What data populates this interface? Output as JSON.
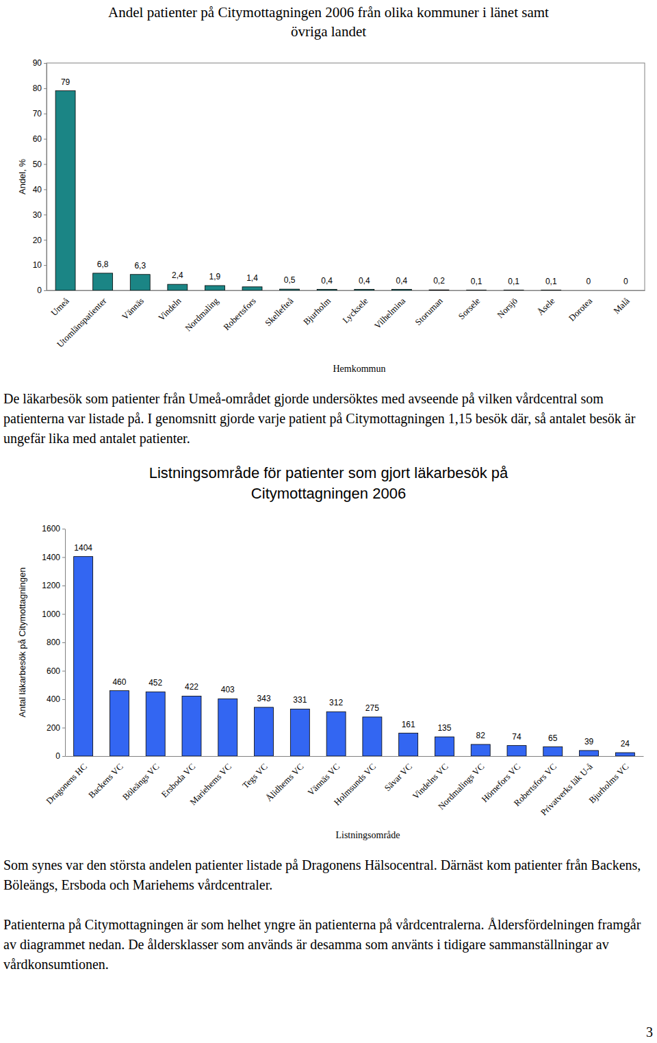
{
  "chart_data": [
    {
      "type": "bar",
      "title": "Andel patienter på Citymottagningen 2006 från olika kommuner i länet samt övriga landet",
      "x_label": "Hemkommun",
      "y_label": "Andel, %",
      "categories": [
        "Umeå",
        "Utomlänspatienter",
        "Vännäs",
        "Vindeln",
        "Nordmaling",
        "Robertsfors",
        "Skellefteå",
        "Bjurholm",
        "Lycksele",
        "Vilhelmina",
        "Storuman",
        "Sorsele",
        "Norsjö",
        "Åsele",
        "Dorotea",
        "Malå"
      ],
      "values": [
        79,
        6.8,
        6.3,
        2.4,
        1.9,
        1.4,
        0.5,
        0.4,
        0.4,
        0.4,
        0.2,
        0.1,
        0.1,
        0.1,
        0,
        0
      ],
      "value_labels": [
        "79",
        "6,8",
        "6,3",
        "2,4",
        "1,9",
        "1,4",
        "0,5",
        "0,4",
        "0,4",
        "0,4",
        "0,2",
        "0,1",
        "0,1",
        "0,1",
        "0",
        "0"
      ],
      "data_labels": true,
      "color": "#1b8585",
      "ylim": [
        0,
        90
      ],
      "yticks": [
        0,
        10,
        20,
        30,
        40,
        50,
        60,
        70,
        80,
        90
      ],
      "grid": false
    },
    {
      "type": "bar",
      "title": "Listningsområde för patienter som gjort läkarbesök på Citymottagningen 2006",
      "x_label": "Listningsområde",
      "y_label": "Antal läkarbesök på Citymottagningen",
      "categories": [
        "Dragonens HC",
        "Backens VC",
        "Böleängs VC",
        "Ersboda VC",
        "Mariehems VC",
        "Tegs VC",
        "Ålidhems VC",
        "Vännäs VC",
        "Holmsunds VC",
        "Sävar VC",
        "Vindelns VC",
        "Nordmalings VC",
        "Hörnefors VC",
        "Robertsfors VC",
        "Privatverks läk U-å",
        "Bjurholms VC"
      ],
      "values": [
        1404,
        460,
        452,
        422,
        403,
        343,
        331,
        312,
        275,
        161,
        135,
        82,
        74,
        65,
        39,
        24
      ],
      "data_labels": true,
      "color": "#3366f2",
      "ylim": [
        0,
        1600
      ],
      "yticks": [
        0,
        200,
        400,
        600,
        800,
        1000,
        1200,
        1400,
        1600
      ],
      "grid": false
    }
  ],
  "paragraphs": [
    "De läkarbesök som patienter från Umeå-området gjorde undersöktes med avseende på vilken vårdcentral som patienterna var listade på. I genomsnitt gjorde varje patient på Citymottagningen 1,15 besök där, så antalet besök är ungefär lika med antalet patienter.",
    "Som synes var den största andelen patienter listade på Dragonens Hälsocentral. Därnäst kom patienter från Backens, Böleängs, Ersboda och Mariehems vårdcentraler.",
    "Patienterna på Citymottagningen är som helhet yngre än patienterna på vårdcentralerna. Åldersfördelningen framgår av diagrammet nedan. De åldersklasser som används är desamma som använts i tidigare sammanställningar av vårdkonsumtionen."
  ],
  "page_number": "3"
}
